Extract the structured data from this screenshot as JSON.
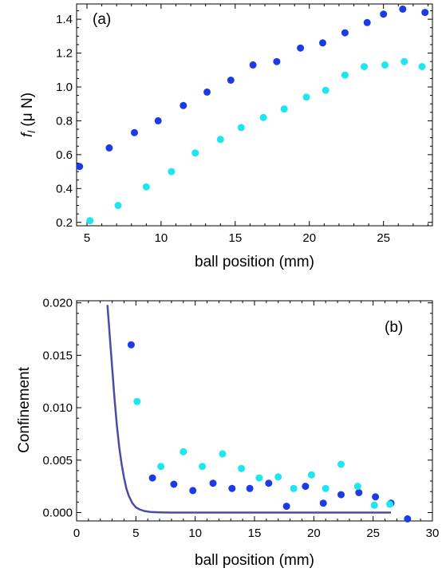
{
  "chart_data": [
    {
      "type": "scatter",
      "panel_label": "(a)",
      "xlabel": "ball position (mm)",
      "ylabel": "f_l (μ N)",
      "ylabel_main": "f",
      "ylabel_sub": "l",
      "ylabel_unit": " (μ N)",
      "xlim": [
        4.3,
        28.3
      ],
      "ylim": [
        0.18,
        1.49
      ],
      "xticks": [
        5,
        10,
        15,
        20,
        25
      ],
      "yticks": [
        0.2,
        0.4,
        0.6,
        0.8,
        1.0,
        1.2,
        1.4
      ],
      "ytick_labels": [
        "0.2",
        "0.4",
        "0.6",
        "0.8",
        "1.0",
        "1.2",
        "1.4"
      ],
      "grid": false,
      "series": [
        {
          "color": "#1a3be6",
          "x": [
            4.5,
            6.5,
            8.2,
            9.8,
            11.5,
            13.1,
            14.7,
            16.2,
            17.8,
            19.4,
            20.9,
            22.4,
            23.9,
            25.0,
            26.3,
            27.8
          ],
          "y": [
            0.53,
            0.64,
            0.73,
            0.8,
            0.89,
            0.97,
            1.04,
            1.13,
            1.15,
            1.23,
            1.26,
            1.32,
            1.38,
            1.43,
            1.46,
            1.44
          ]
        },
        {
          "color": "#1ee6f0",
          "x": [
            5.2,
            7.1,
            9.0,
            10.7,
            12.3,
            14.0,
            15.4,
            16.9,
            18.3,
            19.8,
            21.1,
            22.4,
            23.7,
            25.1,
            26.4,
            27.6
          ],
          "y": [
            0.21,
            0.3,
            0.41,
            0.5,
            0.61,
            0.69,
            0.76,
            0.82,
            0.87,
            0.94,
            0.98,
            1.07,
            1.12,
            1.13,
            1.15,
            1.12
          ]
        }
      ]
    },
    {
      "type": "scatter",
      "panel_label": "(b)",
      "xlabel": "ball position (mm)",
      "ylabel": "Confinement",
      "xlim": [
        0,
        30
      ],
      "ylim": [
        -0.0008,
        0.0202
      ],
      "xticks": [
        0,
        5,
        10,
        15,
        20,
        25,
        30
      ],
      "yticks": [
        0.0,
        0.005,
        0.01,
        0.015,
        0.02
      ],
      "ytick_labels": [
        "0.000",
        "0.005",
        "0.010",
        "0.015",
        "0.020"
      ],
      "grid": false,
      "series": [
        {
          "color": "#1a3be6",
          "x": [
            4.6,
            6.4,
            8.2,
            9.8,
            11.5,
            13.1,
            14.6,
            16.2,
            17.7,
            19.3,
            20.8,
            22.3,
            23.8,
            25.2,
            26.5,
            27.9
          ],
          "y": [
            0.016,
            0.0033,
            0.0027,
            0.0021,
            0.0028,
            0.0023,
            0.0023,
            0.0028,
            0.0006,
            0.0025,
            0.0009,
            0.0017,
            0.0019,
            0.0015,
            0.0009,
            -0.0006
          ]
        },
        {
          "color": "#1ee6f0",
          "x": [
            5.1,
            7.1,
            9.0,
            10.6,
            12.3,
            13.9,
            15.4,
            17.0,
            18.3,
            19.8,
            21.0,
            22.3,
            23.7,
            25.1,
            26.4
          ],
          "y": [
            0.0106,
            0.0044,
            0.0058,
            0.0044,
            0.0056,
            0.0042,
            0.0033,
            0.0034,
            0.0023,
            0.0036,
            0.0023,
            0.0046,
            0.0025,
            0.0007,
            0.0008
          ]
        }
      ],
      "curve": {
        "color": "#4d4ba6",
        "x": [
          2.6,
          2.8,
          3.0,
          3.2,
          3.4,
          3.6,
          3.8,
          4.0,
          4.2,
          4.4,
          4.7,
          5.0,
          5.3,
          5.7,
          6.2,
          7.0,
          8.0,
          10.0,
          15.0,
          20.0,
          26.5
        ],
        "y": [
          0.0198,
          0.0168,
          0.0138,
          0.0108,
          0.0083,
          0.0062,
          0.0046,
          0.0033,
          0.0023,
          0.0016,
          0.0009,
          0.0005,
          0.0003,
          0.00015,
          6e-05,
          2e-05,
          0.0,
          0.0,
          0.0,
          0.0,
          0.0
        ]
      }
    }
  ]
}
